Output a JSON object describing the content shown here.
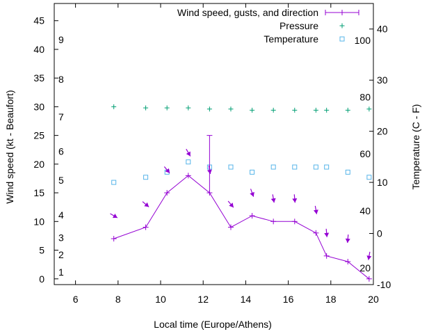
{
  "chart_data": {
    "type": "line",
    "title": "",
    "xlabel": "Local time (Europe/Athens)",
    "ylabel": "Wind speed (kt - Beaufort)",
    "y2label": "Temperature (C - F)",
    "xlim": [
      5,
      20
    ],
    "ylim": [
      -1,
      48
    ],
    "y2lim": [
      -10,
      45
    ],
    "x_ticks": [
      6,
      8,
      10,
      12,
      14,
      16,
      18,
      20
    ],
    "y_ticks": [
      0,
      5,
      10,
      15,
      20,
      25,
      30,
      35,
      40,
      45
    ],
    "y2_ticks": [
      -10,
      0,
      10,
      20,
      30,
      40
    ],
    "beaufort_labels": [
      {
        "label": "1",
        "kt": 1.2
      },
      {
        "label": "2",
        "kt": 4.2
      },
      {
        "label": "3",
        "kt": 7.2
      },
      {
        "label": "4",
        "kt": 11.1
      },
      {
        "label": "5",
        "kt": 17.2
      },
      {
        "label": "6",
        "kt": 22.2
      },
      {
        "label": "7",
        "kt": 28.2
      },
      {
        "label": "8",
        "kt": 34.8
      },
      {
        "label": "9",
        "kt": 41.7
      }
    ],
    "fahrenheit_labels": [
      {
        "label": "20",
        "celsius": -6.7
      },
      {
        "label": "40",
        "celsius": 4.4
      },
      {
        "label": "60",
        "celsius": 15.6
      },
      {
        "label": "80",
        "celsius": 26.7
      },
      {
        "label": "100",
        "celsius": 37.8
      }
    ],
    "legend": {
      "wind": "Wind speed, gusts, and direction",
      "pressure": "Pressure",
      "temperature": "Temperature"
    },
    "legend_position": "top-right",
    "colors": {
      "wind": "#9400d3",
      "pressure": "#009e73",
      "temperature": "#56b4e9",
      "axis": "#000000"
    },
    "series": [
      {
        "name": "Wind speed, gusts, and direction",
        "axis": "y",
        "x": [
          7.8,
          9.3,
          10.3,
          11.3,
          12.3,
          13.3,
          14.3,
          15.3,
          16.3,
          17.3,
          17.8,
          18.8,
          19.8
        ],
        "values": [
          7,
          9,
          15,
          18,
          15,
          9,
          11,
          10,
          10,
          8,
          4,
          3,
          0
        ],
        "gust": {
          "x": 12.3,
          "value": 25
        },
        "direction_deg": [
          300,
          310,
          320,
          330,
          350,
          320,
          340,
          350,
          355,
          350,
          355,
          5,
          10
        ]
      },
      {
        "name": "Pressure",
        "axis": "y",
        "x": [
          7.8,
          9.3,
          10.3,
          11.3,
          12.3,
          13.3,
          14.3,
          15.3,
          16.3,
          17.3,
          17.8,
          18.8,
          19.8
        ],
        "values": [
          30,
          29.8,
          29.8,
          29.8,
          29.6,
          29.6,
          29.4,
          29.4,
          29.4,
          29.4,
          29.4,
          29.4,
          29.6
        ]
      },
      {
        "name": "Temperature",
        "axis": "y2",
        "x": [
          7.8,
          9.3,
          10.3,
          11.3,
          12.3,
          13.3,
          14.3,
          15.3,
          16.3,
          17.3,
          17.8,
          18.8,
          19.8
        ],
        "values": [
          10,
          11,
          12,
          14,
          13,
          13,
          12,
          13,
          13,
          13,
          13,
          12,
          11
        ]
      }
    ]
  }
}
